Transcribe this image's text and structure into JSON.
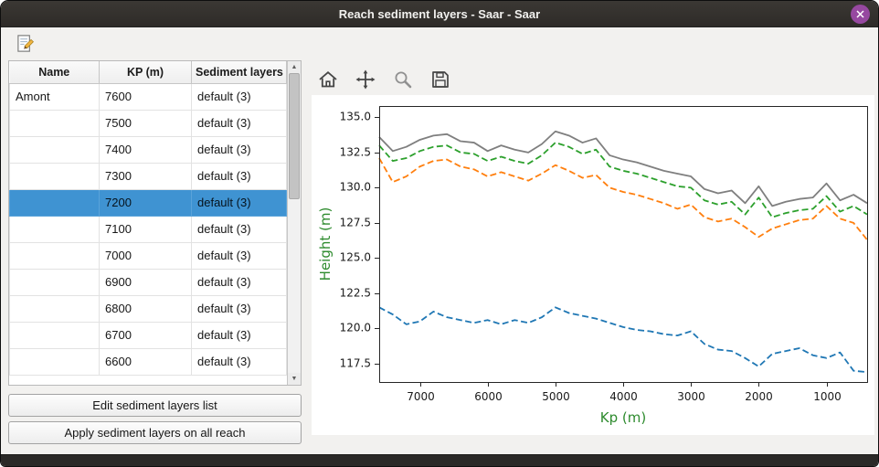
{
  "window": {
    "title": "Reach sediment layers - Saar - Saar"
  },
  "icons": {
    "close": "close-icon",
    "edit": "edit-document-icon",
    "home": "home-icon",
    "pan": "pan-arrows-icon",
    "zoom": "magnifier-icon",
    "save": "floppy-save-icon",
    "scroll_up": "▲",
    "scroll_down": "▼"
  },
  "colors": {
    "selection": "#3f93d2",
    "axis_label_green": "#2e8b2e",
    "close_button_purple": "#9648a0",
    "series_gray": "#7f7f7f",
    "series_green": "#2ca02c",
    "series_orange": "#ff7f0e",
    "series_blue": "#1f77b4"
  },
  "table": {
    "columns": [
      "Name",
      "KP (m)",
      "Sediment layers"
    ],
    "rows": [
      {
        "name": "Amont",
        "kp": "7600",
        "layers": "default (3)",
        "selected": false
      },
      {
        "name": "",
        "kp": "7500",
        "layers": "default (3)",
        "selected": false
      },
      {
        "name": "",
        "kp": "7400",
        "layers": "default (3)",
        "selected": false
      },
      {
        "name": "",
        "kp": "7300",
        "layers": "default (3)",
        "selected": false
      },
      {
        "name": "",
        "kp": "7200",
        "layers": "default (3)",
        "selected": true
      },
      {
        "name": "",
        "kp": "7100",
        "layers": "default (3)",
        "selected": false
      },
      {
        "name": "",
        "kp": "7000",
        "layers": "default (3)",
        "selected": false
      },
      {
        "name": "",
        "kp": "6900",
        "layers": "default (3)",
        "selected": false
      },
      {
        "name": "",
        "kp": "6800",
        "layers": "default (3)",
        "selected": false
      },
      {
        "name": "",
        "kp": "6700",
        "layers": "default (3)",
        "selected": false
      },
      {
        "name": "",
        "kp": "6600",
        "layers": "default (3)",
        "selected": false
      }
    ]
  },
  "buttons": {
    "edit": "Edit sediment layers list",
    "apply": "Apply sediment layers on all reach"
  },
  "chart_data": {
    "type": "line",
    "xlabel": "Kp (m)",
    "ylabel": "Height (m)",
    "axis_label_color": "#2e8b2e",
    "x_reversed": true,
    "xlim": [
      7600,
      400
    ],
    "ylim": [
      116.2,
      135.8
    ],
    "x_ticks": [
      7000,
      6000,
      5000,
      4000,
      3000,
      2000,
      1000
    ],
    "y_ticks": [
      117.5,
      120.0,
      122.5,
      125.0,
      127.5,
      130.0,
      132.5,
      135.0
    ],
    "grid": false,
    "legend": "none",
    "x": [
      7600,
      7400,
      7200,
      7000,
      6800,
      6600,
      6400,
      6200,
      6000,
      5800,
      5600,
      5400,
      5200,
      5000,
      4800,
      4600,
      4400,
      4200,
      4000,
      3800,
      3600,
      3400,
      3200,
      3000,
      2800,
      2600,
      2400,
      2200,
      2000,
      1800,
      1600,
      1400,
      1200,
      1000,
      800,
      600,
      400
    ],
    "series": [
      {
        "name": "gray-solid",
        "color": "#7f7f7f",
        "style": "solid",
        "values": [
          133.6,
          132.6,
          132.9,
          133.4,
          133.7,
          133.8,
          133.3,
          133.2,
          132.6,
          133.0,
          132.7,
          132.5,
          133.1,
          134.0,
          133.7,
          133.2,
          133.5,
          132.3,
          132.0,
          131.8,
          131.5,
          131.2,
          131.0,
          130.8,
          129.9,
          129.6,
          129.8,
          128.9,
          130.1,
          128.7,
          129.0,
          129.2,
          129.3,
          130.3,
          129.1,
          129.5,
          128.9
        ]
      },
      {
        "name": "green-dashed",
        "color": "#2ca02c",
        "style": "dashed",
        "values": [
          133.0,
          131.9,
          132.1,
          132.6,
          132.9,
          133.0,
          132.5,
          132.4,
          131.9,
          132.2,
          131.9,
          131.7,
          132.3,
          133.2,
          132.9,
          132.4,
          132.7,
          131.5,
          131.2,
          131.0,
          130.7,
          130.4,
          130.1,
          130.0,
          129.1,
          128.8,
          129.0,
          128.1,
          129.3,
          127.9,
          128.2,
          128.4,
          128.5,
          129.4,
          128.3,
          128.7,
          128.1
        ]
      },
      {
        "name": "orange-dashed",
        "color": "#ff7f0e",
        "style": "dashed",
        "values": [
          132.1,
          130.4,
          130.8,
          131.5,
          131.9,
          132.0,
          131.5,
          131.3,
          130.8,
          131.1,
          130.8,
          130.5,
          131.0,
          131.6,
          131.2,
          130.7,
          130.9,
          130.0,
          129.7,
          129.5,
          129.2,
          128.9,
          128.5,
          128.8,
          127.9,
          127.6,
          127.8,
          127.2,
          126.5,
          127.1,
          127.4,
          127.7,
          127.8,
          128.7,
          127.8,
          127.5,
          126.3
        ]
      },
      {
        "name": "blue-dashed",
        "color": "#1f77b4",
        "style": "dashed",
        "values": [
          121.5,
          121.0,
          120.3,
          120.5,
          121.2,
          120.8,
          120.6,
          120.4,
          120.6,
          120.3,
          120.6,
          120.4,
          120.8,
          121.5,
          121.1,
          120.9,
          120.7,
          120.4,
          120.1,
          119.9,
          119.8,
          119.6,
          119.5,
          119.8,
          118.9,
          118.5,
          118.4,
          117.9,
          117.3,
          118.2,
          118.4,
          118.6,
          118.1,
          117.9,
          118.3,
          117.0,
          116.9
        ]
      }
    ]
  }
}
